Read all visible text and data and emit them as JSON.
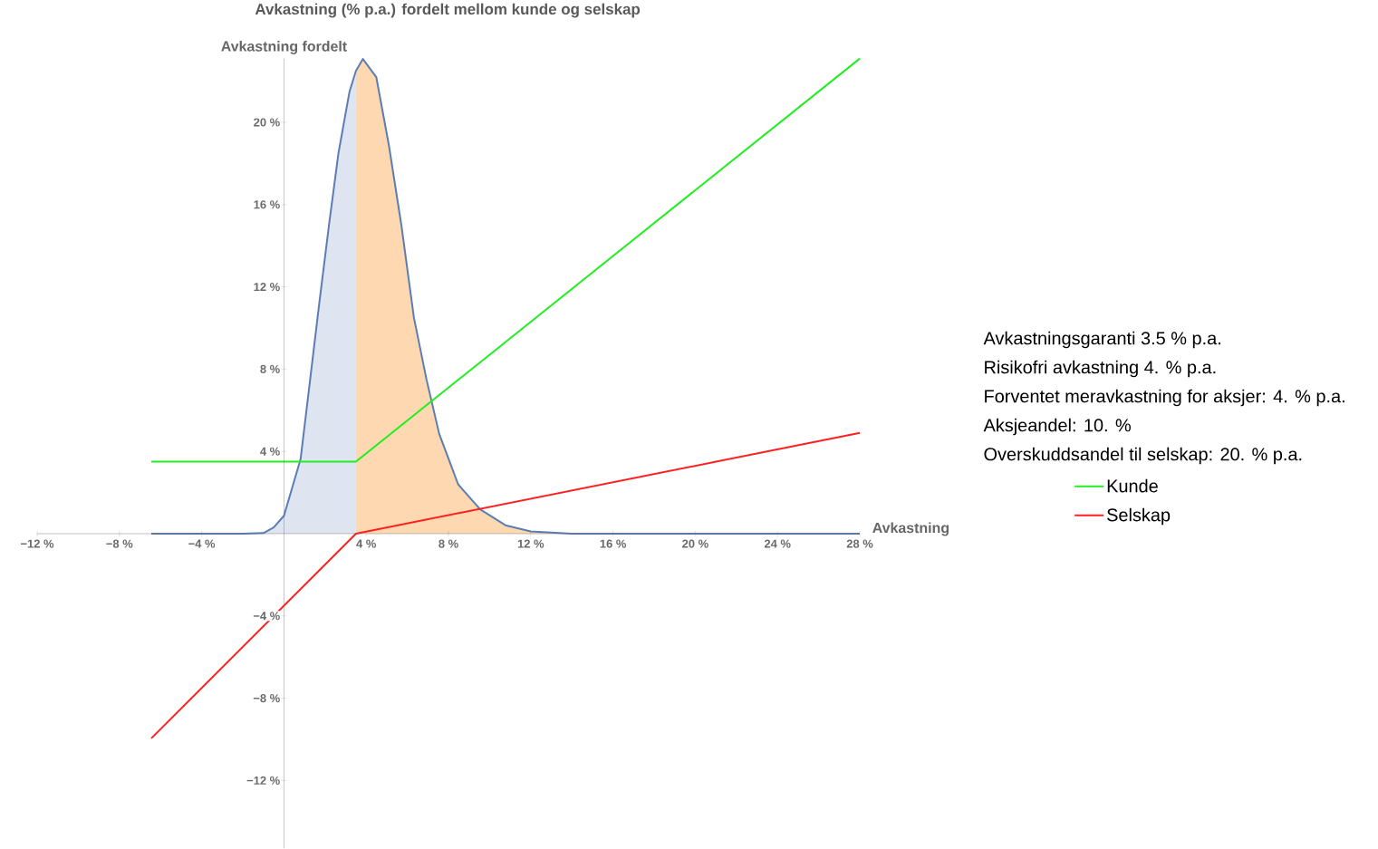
{
  "chart_data": {
    "type": "line",
    "title": "Avkastning (% p.a.) fordelt mellom kunde og selskap",
    "xlabel": "Avkastning",
    "ylabel": "Avkastning fordelt",
    "xlim": [
      -12,
      28
    ],
    "ylim": [
      -15.3,
      23.1
    ],
    "xticks": [
      {
        "value": -12,
        "label": "−12 %"
      },
      {
        "value": -8,
        "label": "−8 %"
      },
      {
        "value": -4,
        "label": "−4 %"
      },
      {
        "value": 4,
        "label": "4 %"
      },
      {
        "value": 8,
        "label": "8 %"
      },
      {
        "value": 12,
        "label": "12 %"
      },
      {
        "value": 16,
        "label": "16 %"
      },
      {
        "value": 20,
        "label": "20 %"
      },
      {
        "value": 24,
        "label": "24 %"
      },
      {
        "value": 28,
        "label": "28 %"
      }
    ],
    "yticks": [
      {
        "value": -12,
        "label": "−12 %"
      },
      {
        "value": -8,
        "label": "−8 %"
      },
      {
        "value": -4,
        "label": "−4 %"
      },
      {
        "value": 4,
        "label": "4 %"
      },
      {
        "value": 8,
        "label": "8 %"
      },
      {
        "value": 12,
        "label": "12 %"
      },
      {
        "value": 16,
        "label": "16 %"
      },
      {
        "value": 20,
        "label": "20 %"
      }
    ],
    "series": [
      {
        "type": "area",
        "color": "#dfe5f0",
        "x": [
          -6.45,
          -2,
          -1,
          -0.5,
          0,
          0.81,
          1.27,
          1.73,
          2.19,
          2.65,
          3.19,
          3.5
        ],
        "values": [
          0,
          0,
          0.03,
          0.3,
          0.87,
          3.63,
          7.46,
          11.3,
          15,
          18.5,
          21.5,
          22.5
        ]
      },
      {
        "type": "area",
        "color": "#fdd8b0",
        "x": [
          3.5,
          3.84,
          4.49,
          5.1,
          5.71,
          6.32,
          6.94,
          7.55,
          8.47,
          9.54,
          10.77,
          12,
          14,
          28
        ],
        "values": [
          22.5,
          23.08,
          22.2,
          18.9,
          15,
          10.5,
          7.46,
          4.85,
          2.4,
          1.18,
          0.41,
          0.11,
          0,
          0
        ]
      },
      {
        "color": "#5b7db5",
        "x": [
          -6.45,
          -2,
          -1,
          -0.5,
          0,
          0.81,
          1.27,
          1.73,
          2.19,
          2.65,
          3.19,
          3.5,
          3.84,
          4.49,
          5.1,
          5.71,
          6.32,
          6.94,
          7.55,
          8.47,
          9.54,
          10.77,
          12,
          14,
          28
        ],
        "values": [
          0,
          0,
          0.03,
          0.3,
          0.87,
          3.63,
          7.46,
          11.3,
          15,
          18.5,
          21.5,
          22.5,
          23.08,
          22.2,
          18.9,
          15,
          10.5,
          7.46,
          4.85,
          2.4,
          1.18,
          0.41,
          0.11,
          0,
          0
        ]
      },
      {
        "name": "Kunde",
        "color": "#22ee22",
        "x": [
          -6.45,
          3.5,
          28
        ],
        "values": [
          3.5,
          3.5,
          23.1
        ]
      },
      {
        "name": "Selskap",
        "color": "#ff2020",
        "x": [
          -6.45,
          3.5,
          28
        ],
        "values": [
          -9.95,
          0,
          4.9
        ]
      }
    ],
    "legend": "right",
    "annotations": [
      "Avkastningsgaranti 3.5 % p.a.",
      "Risikofri avkastning 4. % p.a.",
      "Forventet meravkastning for aksjer: 4. % p.a.",
      "Aksjeandel: 10. %",
      "Overskuddsandel til selskap: 20. % p.a."
    ]
  }
}
